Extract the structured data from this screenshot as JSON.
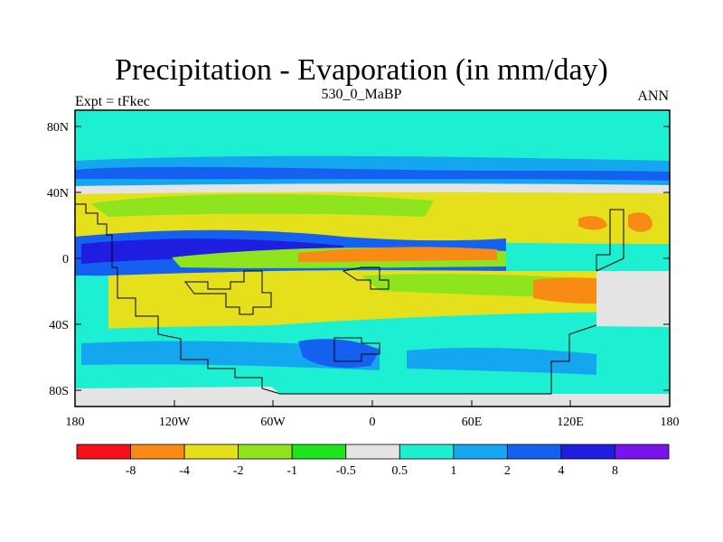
{
  "title": "Precipitation - Evaporation (in mm/day)",
  "subtitle_center": "530_0_MaBP",
  "subtitle_left": "Expt = tFkec",
  "subtitle_right": "ANN",
  "y_axis_labels": [
    "80N",
    "40N",
    "0",
    "40S",
    "80S"
  ],
  "x_axis_labels": [
    "180",
    "120W",
    "60W",
    "0",
    "60E",
    "120E",
    "180"
  ],
  "colorbar": {
    "colors": [
      "#f5101a",
      "#f98a14",
      "#e6e01c",
      "#8ee51e",
      "#1ee41e",
      "#e4e4e4",
      "#1df0d2",
      "#14a6ee",
      "#1460f0",
      "#1f1ee0",
      "#7a14ee"
    ],
    "labels": [
      "-8",
      "-4",
      "-2",
      "-1",
      "-0.5",
      "0.5",
      "1",
      "2",
      "4",
      "8"
    ]
  },
  "chart_data": {
    "type": "heatmap",
    "title": "Precipitation - Evaporation (in mm/day)",
    "subtitle": "530_0_MaBP",
    "experiment": "Expt = tFkec",
    "season": "ANN",
    "x_range": [
      -180,
      180
    ],
    "y_range": [
      -90,
      90
    ],
    "x_ticks": [
      "180",
      "120W",
      "60W",
      "0",
      "60E",
      "120E",
      "180"
    ],
    "y_ticks": [
      "80N",
      "40N",
      "0",
      "40S",
      "80S"
    ],
    "color_levels": [
      -8,
      -4,
      -2,
      -1,
      -0.5,
      0.5,
      1,
      2,
      4,
      8
    ]
  }
}
